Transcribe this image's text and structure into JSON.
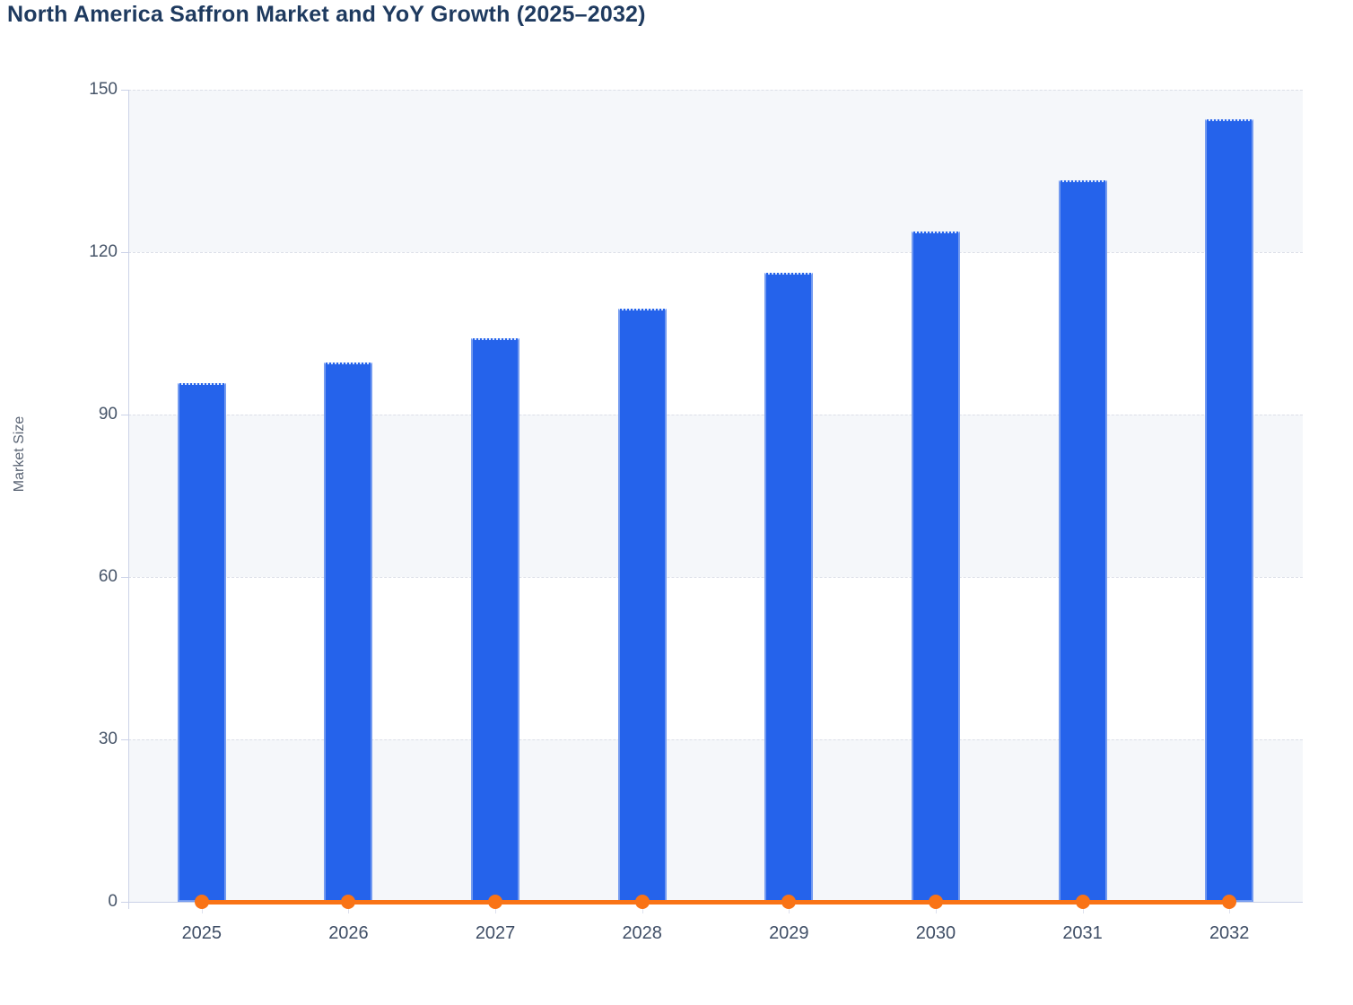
{
  "page": {
    "title": "North America Saffron Market and YoY Growth (2025–2032)"
  },
  "chart_data": {
    "type": "bar",
    "title": "North America Saffron Market and YoY Growth (2025–2032)",
    "xlabel": "",
    "ylabel": "Market Size",
    "ylim": [
      0,
      150
    ],
    "yticks": [
      0,
      30,
      60,
      90,
      120,
      150
    ],
    "categories": [
      "2025",
      "2026",
      "2027",
      "2028",
      "2029",
      "2030",
      "2031",
      "2032"
    ],
    "series": [
      {
        "name": "Market Size",
        "type": "bar",
        "color": "#2563EB",
        "values": [
          95.8,
          99.6,
          104.1,
          109.6,
          116.2,
          123.8,
          133.3,
          144.5
        ]
      },
      {
        "name": "YoY Growth",
        "type": "line",
        "color": "#F97316",
        "values": [
          0,
          0,
          0,
          0,
          0,
          0,
          0,
          0
        ]
      }
    ],
    "legend": "none",
    "grid": "horizontal-dashed",
    "split_area_colors": [
      "#F5F7FA",
      "#FFFFFF"
    ],
    "style": {
      "bar_color": "#2563EB",
      "line_color": "#F97316",
      "title_color": "#1E3A5F",
      "band_color": "#F5F7FA",
      "gridline_color": "#DCDFE8",
      "axis_line_color": "#CBD2E8",
      "y_tick_label_color": "#475569",
      "x_tick_label_color": "#3F4E66",
      "background_color": "#FFFFFF"
    }
  }
}
